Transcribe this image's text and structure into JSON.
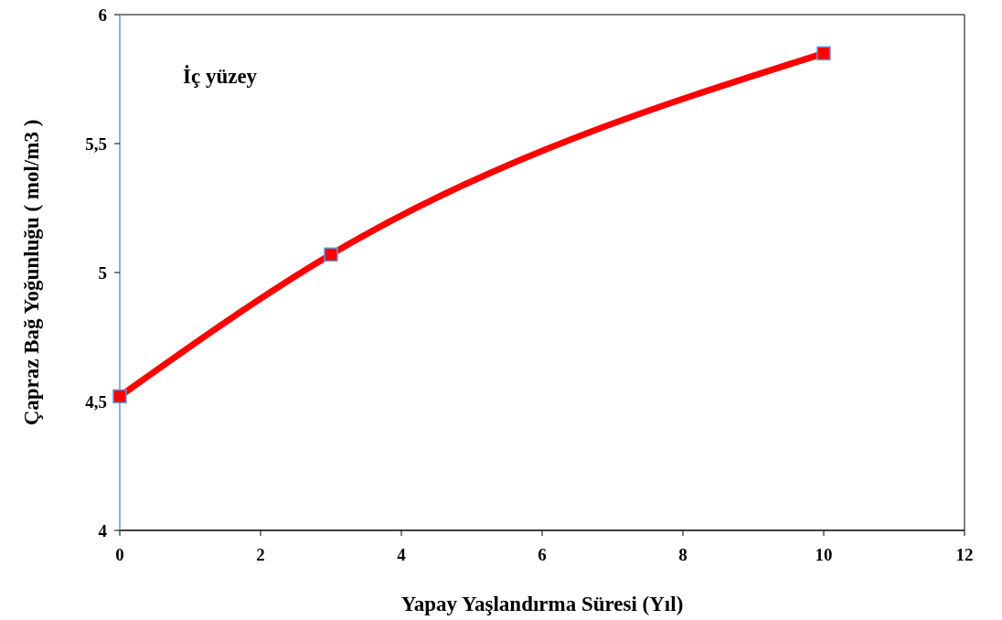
{
  "chart_data": {
    "type": "line",
    "xlabel": "Yapay Yaşlandırma Süresi (Yıl)",
    "ylabel": "Çapraz Bağ Yoğunluğu ( mol/m3 )",
    "annotations": [
      "İç yüzey"
    ],
    "x": [
      0,
      3,
      10
    ],
    "series": [
      {
        "color": "#ff0000",
        "values": [
          4.52,
          5.07,
          5.85
        ]
      }
    ],
    "marker": "square",
    "line_style": "solid",
    "grid": false,
    "xlim": [
      0,
      12
    ],
    "xticks": [
      0,
      2,
      4,
      6,
      8,
      10,
      12
    ],
    "ylim": [
      4,
      6
    ],
    "yticks": [
      4,
      {
        "value": 4.5,
        "label": "4,5"
      },
      5,
      {
        "value": 5.5,
        "label": "5,5"
      },
      6
    ]
  }
}
